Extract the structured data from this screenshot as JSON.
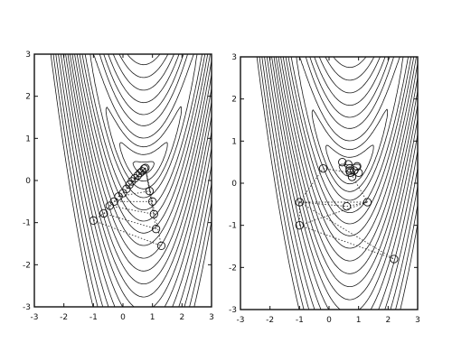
{
  "chart_data": [
    {
      "type": "scatter",
      "title": "",
      "xlabel": "",
      "ylabel": "",
      "xlim": [
        -3,
        3
      ],
      "ylim": [
        -3,
        3
      ],
      "xticks": [
        -3,
        -2,
        -1,
        0,
        1,
        2,
        3
      ],
      "yticks": [
        -3,
        -2,
        -1,
        0,
        1,
        2,
        3
      ],
      "contour_field": "f(x,y) = (y - 0.85*(x - 0.7)^2 - 0.3)^2 + 0.15*(x - 0.7)^2",
      "contour_levels": [
        0.02,
        0.1,
        0.25,
        0.5,
        1,
        1.6,
        2.4,
        3.4,
        4.6,
        6,
        7.6,
        9.4,
        11.5,
        14,
        17,
        20.5,
        24.5,
        29,
        34
      ],
      "points": [
        [
          -1.0,
          -0.95
        ],
        [
          -0.65,
          -0.78
        ],
        [
          -0.45,
          -0.6
        ],
        [
          -0.3,
          -0.5
        ],
        [
          -0.15,
          -0.38
        ],
        [
          0.0,
          -0.3
        ],
        [
          0.12,
          -0.2
        ],
        [
          0.22,
          -0.1
        ],
        [
          0.3,
          -0.02
        ],
        [
          0.4,
          0.05
        ],
        [
          0.5,
          0.12
        ],
        [
          0.58,
          0.18
        ],
        [
          0.65,
          0.22
        ],
        [
          0.72,
          0.28
        ],
        [
          0.76,
          0.3
        ],
        [
          0.9,
          -0.25
        ],
        [
          1.0,
          -0.5
        ],
        [
          1.05,
          -0.8
        ],
        [
          1.12,
          -1.15
        ],
        [
          1.3,
          -1.55
        ]
      ],
      "segments": [
        [
          [
            -1.0,
            -0.95
          ],
          [
            1.3,
            -1.55
          ]
        ],
        [
          [
            -0.65,
            -0.78
          ],
          [
            1.12,
            -1.15
          ]
        ],
        [
          [
            -0.45,
            -0.6
          ],
          [
            1.05,
            -0.8
          ]
        ],
        [
          [
            -0.3,
            -0.5
          ],
          [
            1.0,
            -0.5
          ]
        ],
        [
          [
            -0.15,
            -0.38
          ],
          [
            0.9,
            -0.25
          ]
        ],
        [
          [
            -1.0,
            -0.95
          ],
          [
            -0.65,
            -0.78
          ]
        ],
        [
          [
            -0.65,
            -0.78
          ],
          [
            -0.45,
            -0.6
          ]
        ],
        [
          [
            -0.45,
            -0.6
          ],
          [
            -0.3,
            -0.5
          ]
        ],
        [
          [
            -0.3,
            -0.5
          ],
          [
            -0.15,
            -0.38
          ]
        ],
        [
          [
            -0.15,
            -0.38
          ],
          [
            0.0,
            -0.3
          ]
        ],
        [
          [
            0.0,
            -0.3
          ],
          [
            0.76,
            0.3
          ]
        ],
        [
          [
            0.12,
            -0.2
          ],
          [
            0.76,
            0.3
          ]
        ],
        [
          [
            0.22,
            -0.1
          ],
          [
            0.76,
            0.3
          ]
        ],
        [
          [
            0.3,
            -0.02
          ],
          [
            0.76,
            0.3
          ]
        ],
        [
          [
            0.4,
            0.05
          ],
          [
            0.76,
            0.3
          ]
        ],
        [
          [
            0.9,
            -0.25
          ],
          [
            0.76,
            0.3
          ]
        ],
        [
          [
            1.0,
            -0.5
          ],
          [
            0.76,
            0.3
          ]
        ],
        [
          [
            1.05,
            -0.8
          ],
          [
            0.76,
            0.3
          ]
        ],
        [
          [
            1.12,
            -1.15
          ],
          [
            0.76,
            0.3
          ]
        ],
        [
          [
            1.3,
            -1.55
          ],
          [
            0.76,
            0.3
          ]
        ]
      ],
      "grid": false
    },
    {
      "type": "scatter",
      "title": "",
      "xlabel": "",
      "ylabel": "",
      "xlim": [
        -3,
        3
      ],
      "ylim": [
        -3,
        3
      ],
      "xticks": [
        -3,
        -2,
        -1,
        0,
        1,
        2,
        3
      ],
      "yticks": [
        -3,
        -2,
        -1,
        0,
        1,
        2,
        3
      ],
      "contour_field": "f(x,y) = (y - 0.85*(x - 0.7)^2 - 0.3)^2 + 0.15*(x - 0.7)^2",
      "contour_levels": [
        0.02,
        0.1,
        0.25,
        0.5,
        1,
        1.6,
        2.4,
        3.4,
        4.6,
        6,
        7.6,
        9.4,
        11.5,
        14,
        17,
        20.5,
        24.5,
        29,
        34
      ],
      "points": [
        [
          -1.0,
          -0.45
        ],
        [
          -1.0,
          -1.0
        ],
        [
          -0.2,
          0.35
        ],
        [
          0.6,
          -0.55
        ],
        [
          1.3,
          -0.45
        ],
        [
          2.2,
          -1.8
        ],
        [
          0.45,
          0.5
        ],
        [
          0.65,
          0.45
        ],
        [
          0.7,
          0.35
        ],
        [
          0.72,
          0.25
        ],
        [
          0.78,
          0.15
        ],
        [
          0.85,
          0.3
        ],
        [
          1.0,
          0.25
        ],
        [
          0.95,
          0.4
        ],
        [
          0.7,
          0.3
        ]
      ],
      "segments": [
        [
          [
            -1.0,
            -0.45
          ],
          [
            2.2,
            -1.8
          ]
        ],
        [
          [
            -1.0,
            -1.0
          ],
          [
            2.2,
            -1.8
          ]
        ],
        [
          [
            -1.0,
            -0.45
          ],
          [
            -0.2,
            0.35
          ]
        ],
        [
          [
            -1.0,
            -0.45
          ],
          [
            0.6,
            -0.55
          ]
        ],
        [
          [
            -1.0,
            -0.45
          ],
          [
            1.3,
            -0.45
          ]
        ],
        [
          [
            -1.0,
            -1.0
          ],
          [
            1.3,
            -0.45
          ]
        ],
        [
          [
            -0.2,
            0.35
          ],
          [
            0.72,
            0.25
          ]
        ],
        [
          [
            0.6,
            -0.55
          ],
          [
            1.3,
            -0.45
          ]
        ],
        [
          [
            1.3,
            -0.45
          ],
          [
            0.72,
            0.25
          ]
        ],
        [
          [
            -1.0,
            -0.45
          ],
          [
            -1.0,
            -1.0
          ]
        ]
      ],
      "grid": false
    }
  ]
}
